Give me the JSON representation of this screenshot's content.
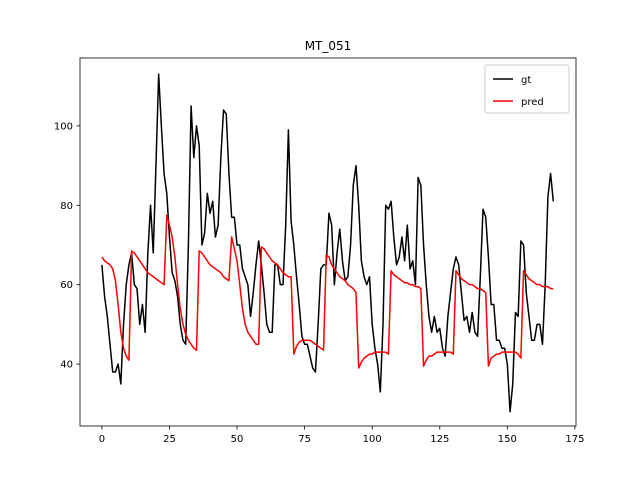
{
  "chart_data": {
    "type": "line",
    "title": "MT_051",
    "x": [
      0,
      1,
      2,
      3,
      4,
      5,
      6,
      7,
      8,
      9,
      10,
      11,
      12,
      13,
      14,
      15,
      16,
      17,
      18,
      19,
      20,
      21,
      22,
      23,
      24,
      25,
      26,
      27,
      28,
      29,
      30,
      31,
      32,
      33,
      34,
      35,
      36,
      37,
      38,
      39,
      40,
      41,
      42,
      43,
      44,
      45,
      46,
      47,
      48,
      49,
      50,
      51,
      52,
      53,
      54,
      55,
      56,
      57,
      58,
      59,
      60,
      61,
      62,
      63,
      64,
      65,
      66,
      67,
      68,
      69,
      70,
      71,
      72,
      73,
      74,
      75,
      76,
      77,
      78,
      79,
      80,
      81,
      82,
      83,
      84,
      85,
      86,
      87,
      88,
      89,
      90,
      91,
      92,
      93,
      94,
      95,
      96,
      97,
      98,
      99,
      100,
      101,
      102,
      103,
      104,
      105,
      106,
      107,
      108,
      109,
      110,
      111,
      112,
      113,
      114,
      115,
      116,
      117,
      118,
      119,
      120,
      121,
      122,
      123,
      124,
      125,
      126,
      127,
      128,
      129,
      130,
      131,
      132,
      133,
      134,
      135,
      136,
      137,
      138,
      139,
      140,
      141,
      142,
      143,
      144,
      145,
      146,
      147,
      148,
      149,
      150,
      151,
      152,
      153,
      154,
      155,
      156,
      157,
      158,
      159,
      160,
      161,
      162,
      163,
      164,
      165,
      166,
      167
    ],
    "series": [
      {
        "name": "gt",
        "color": "#000000",
        "values": [
          65,
          57,
          52,
          45,
          38,
          38,
          40,
          35,
          50,
          60,
          65,
          68,
          60,
          59,
          50,
          55,
          48,
          68,
          80,
          68,
          90,
          113,
          100,
          88,
          83,
          72,
          63,
          61,
          57,
          50,
          46,
          45,
          70,
          105,
          92,
          100,
          95,
          70,
          73,
          83,
          78,
          81,
          72,
          75,
          92,
          104,
          103,
          88,
          77,
          77,
          70,
          70,
          64,
          62,
          60,
          52,
          58,
          65,
          71,
          65,
          58,
          50,
          48,
          48,
          65,
          65,
          60,
          60,
          75,
          99,
          76,
          70,
          62,
          55,
          47,
          45,
          45,
          42,
          39,
          38,
          50,
          64,
          65,
          65,
          78,
          75,
          60,
          68,
          74,
          66,
          61,
          62,
          70,
          85,
          90,
          80,
          66,
          62,
          60,
          62,
          50,
          44,
          40,
          33,
          50,
          80,
          79,
          81,
          72,
          65,
          67,
          72,
          66,
          75,
          64,
          66,
          60,
          87,
          85,
          70,
          60,
          52,
          48,
          52,
          48,
          49,
          44,
          42,
          52,
          58,
          64,
          67,
          65,
          58,
          51,
          52,
          48,
          53,
          48,
          47,
          62,
          79,
          77,
          67,
          55,
          55,
          46,
          46,
          44,
          44,
          40,
          28,
          35,
          53,
          52,
          71,
          70,
          58,
          52,
          46,
          46,
          50,
          50,
          45,
          60,
          82,
          88,
          81
        ]
      },
      {
        "name": "pred",
        "color": "#ff0000",
        "values": [
          67,
          66,
          65.5,
          65,
          64,
          61,
          55,
          48,
          44,
          42,
          41,
          68.5,
          68,
          67,
          66,
          65,
          64,
          63,
          62.5,
          62,
          61.5,
          61,
          60.5,
          60,
          77.5,
          75,
          72,
          67,
          60,
          54,
          50,
          47.5,
          46,
          45,
          44,
          43.5,
          68.5,
          68,
          67,
          66,
          65,
          64.5,
          64,
          63.5,
          63,
          62,
          61.5,
          61,
          72,
          69,
          66,
          60,
          54,
          50,
          48,
          47,
          46,
          45,
          45,
          69.5,
          69,
          68,
          67,
          66,
          65.5,
          65,
          64,
          63,
          62.5,
          62,
          62,
          42.5,
          44.5,
          45.5,
          46,
          46,
          46,
          46,
          45.5,
          45,
          44.5,
          44,
          43.5,
          67.5,
          67,
          65,
          64,
          63,
          62,
          61.5,
          61,
          60,
          59.5,
          59,
          58,
          39,
          40.5,
          41.5,
          42,
          42.5,
          42.5,
          43,
          43,
          43,
          43,
          43,
          42.5,
          63.5,
          62.5,
          62,
          61.5,
          61,
          60.5,
          60.5,
          60,
          60,
          59.5,
          59.5,
          59,
          39.5,
          41,
          42,
          42,
          42.5,
          43,
          43,
          43,
          43,
          43,
          43,
          42.5,
          63.5,
          62.5,
          61.5,
          61,
          60.5,
          60,
          60,
          59.5,
          59,
          59,
          58.5,
          58,
          39.5,
          41.5,
          42,
          42.5,
          42.5,
          43,
          43,
          43,
          43,
          43,
          43,
          42.5,
          41.5,
          63.5,
          62.5,
          61.5,
          61,
          60.5,
          60,
          60,
          59.5,
          59.5,
          59.5,
          59,
          59
        ]
      }
    ],
    "xlim": [
      -8.1,
      175.4
    ],
    "ylim": [
      24.4,
      117.1
    ],
    "xticks": [
      0,
      25,
      50,
      75,
      100,
      125,
      150,
      175
    ],
    "yticks": [
      40,
      60,
      80,
      100
    ],
    "legend": "upper right"
  }
}
